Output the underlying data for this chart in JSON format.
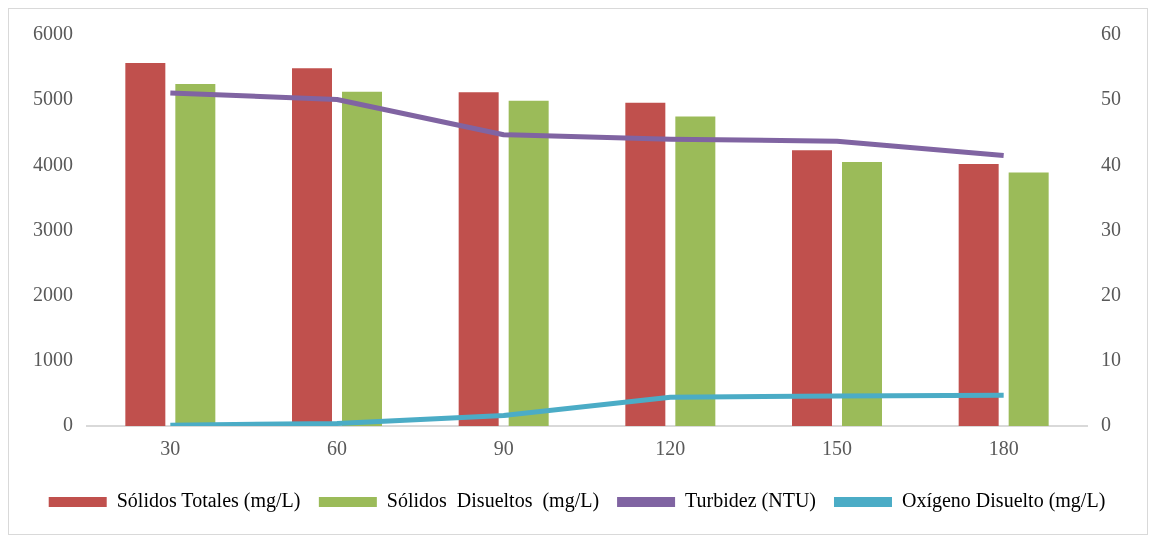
{
  "chart_data": {
    "type": "bar",
    "categories": [
      "30",
      "60",
      "90",
      "120",
      "150",
      "180"
    ],
    "series": [
      {
        "name": "Sólidos Totales (mg/L)",
        "color": "#c0504d",
        "values": [
          5570,
          5490,
          5120,
          4960,
          4230,
          4020
        ]
      },
      {
        "name": "Sólidos  Disueltos  (mg/L)",
        "color": "#9bbb59",
        "values": [
          5250,
          5130,
          4990,
          4750,
          4050,
          3890
        ]
      },
      {
        "name": "Turbidez (NTU)",
        "type": "line",
        "axis": "y2",
        "color": "#8064a2",
        "values": [
          51.1,
          50.1,
          44.7,
          44.0,
          43.7,
          41.5
        ]
      },
      {
        "name": "Oxígeno Disuelto (mg/L)",
        "type": "line",
        "axis": "y2",
        "color": "#4bacc6",
        "values": [
          0.1,
          0.4,
          1.6,
          4.4,
          4.6,
          4.7
        ]
      }
    ],
    "ylim": [
      0,
      6000
    ],
    "yticks": [
      0,
      1000,
      2000,
      3000,
      4000,
      5000,
      6000
    ],
    "y2lim": [
      0,
      60
    ],
    "y2ticks": [
      0,
      10,
      20,
      30,
      40,
      50,
      60
    ],
    "grid": false,
    "legend": "bottom",
    "marker": "none",
    "line_style": "solid"
  }
}
